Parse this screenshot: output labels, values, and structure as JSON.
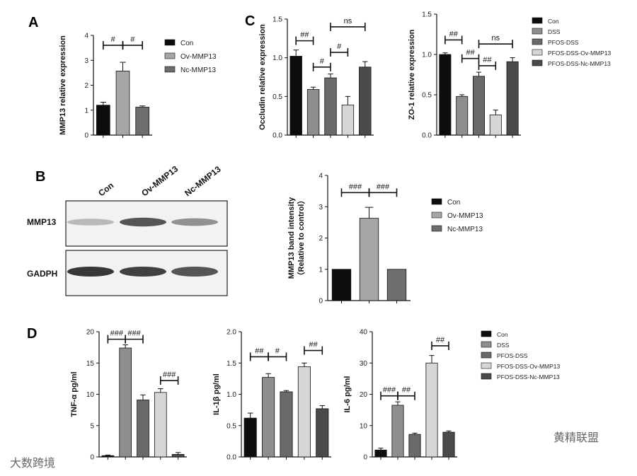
{
  "colors": {
    "Con": "#0d0d0d",
    "DSS": "#8e8e8e",
    "PFOS-DSS": "#6a6a6a",
    "PFOS-DSS-Ov-MMP13": "#d6d6d6",
    "PFOS-DSS-Nc-MMP13": "#4a4a4a",
    "Ov-MMP13": "#a6a6a6",
    "Nc-MMP13": "#6e6e6e"
  },
  "panels": {
    "A": "A",
    "B": "B",
    "C": "C",
    "D": "D"
  },
  "blot": {
    "lanes": [
      "Con",
      "Ov-MMP13",
      "Nc-MMP13"
    ],
    "bands": [
      "MMP13",
      "GADPH"
    ],
    "mmp13_intensity": [
      0.25,
      0.75,
      0.45
    ],
    "gadph_intensity": [
      0.9,
      0.85,
      0.75
    ]
  },
  "watermarks": {
    "left": "大数跨境",
    "right": "黄精联盟"
  },
  "chart_data": [
    {
      "id": "A",
      "type": "bar",
      "categories": [
        "Con",
        "Ov-MMP13",
        "Nc-MMP13"
      ],
      "values": [
        1.2,
        2.57,
        1.12
      ],
      "errors": [
        0.12,
        0.35,
        0.05
      ],
      "ylabel": "MMP13 relative expression",
      "ylim": [
        0,
        4
      ],
      "yticks": [
        0,
        1,
        2,
        3,
        4
      ],
      "legend": [
        "Con",
        "Ov-MMP13",
        "Nc-MMP13"
      ],
      "annotations": [
        {
          "from": 0,
          "to": 1,
          "y": 3.6,
          "text": "#"
        },
        {
          "from": 1,
          "to": 2,
          "y": 3.6,
          "text": "#"
        }
      ]
    },
    {
      "id": "C1",
      "type": "bar",
      "categories": [
        "Con",
        "DSS",
        "PFOS-DSS",
        "PFOS-DSS-Ov-MMP13",
        "PFOS-DSS-Nc-MMP13"
      ],
      "values": [
        1.02,
        0.59,
        0.74,
        0.39,
        0.88
      ],
      "errors": [
        0.08,
        0.03,
        0.05,
        0.11,
        0.07
      ],
      "ylabel": "Occludin relative expression",
      "ylim": [
        0,
        1.5
      ],
      "yticks": [
        0,
        0.5,
        1.0,
        1.5
      ],
      "annotations": [
        {
          "from": 0,
          "to": 1,
          "y": 1.22,
          "text": "##"
        },
        {
          "from": 1,
          "to": 2,
          "y": 0.88,
          "text": "#"
        },
        {
          "from": 2,
          "to": 3,
          "y": 1.07,
          "text": "#"
        },
        {
          "from": 2,
          "to": 4,
          "y": 1.4,
          "text": "ns"
        }
      ]
    },
    {
      "id": "C2",
      "type": "bar",
      "categories": [
        "Con",
        "DSS",
        "PFOS-DSS",
        "PFOS-DSS-Ov-MMP13",
        "PFOS-DSS-Nc-MMP13"
      ],
      "values": [
        1.0,
        0.48,
        0.73,
        0.25,
        0.91
      ],
      "errors": [
        0.02,
        0.02,
        0.05,
        0.06,
        0.05
      ],
      "ylabel": "ZO-1 relative expression",
      "ylim": [
        0,
        1.5
      ],
      "yticks": [
        0,
        0.5,
        1.0,
        1.5
      ],
      "legend": [
        "Con",
        "DSS",
        "PFOS-DSS",
        "PFOS-DSS-Ov-MMP13",
        "PFOS-DSS-Nc-MMP13"
      ],
      "annotations": [
        {
          "from": 0,
          "to": 1,
          "y": 1.18,
          "text": "##"
        },
        {
          "from": 1,
          "to": 2,
          "y": 0.95,
          "text": "##"
        },
        {
          "from": 2,
          "to": 3,
          "y": 0.86,
          "text": "##"
        },
        {
          "from": 2,
          "to": 4,
          "y": 1.13,
          "text": "ns"
        }
      ]
    },
    {
      "id": "B2",
      "type": "bar",
      "categories": [
        "Con",
        "Ov-MMP13",
        "Nc-MMP13"
      ],
      "values": [
        1.0,
        2.63,
        1.0
      ],
      "errors": [
        0.0,
        0.35,
        0.0
      ],
      "ylabel": "MMP13 band intensity（Relative to control）",
      "ylim": [
        0,
        4
      ],
      "yticks": [
        0,
        1,
        2,
        3,
        4
      ],
      "legend": [
        "Con",
        "Ov-MMP13",
        "Nc-MMP13"
      ],
      "annotations": [
        {
          "from": 0,
          "to": 1,
          "y": 3.45,
          "text": "###"
        },
        {
          "from": 1,
          "to": 2,
          "y": 3.45,
          "text": "###"
        }
      ]
    },
    {
      "id": "D1",
      "type": "bar",
      "categories": [
        "Con",
        "DSS",
        "PFOS-DSS",
        "PFOS-DSS-Ov-MMP13",
        "PFOS-DSS-Nc-MMP13"
      ],
      "values": [
        0.2,
        17.4,
        9.1,
        10.3,
        0.4
      ],
      "errors": [
        0.1,
        0.5,
        0.8,
        0.6,
        0.3
      ],
      "ylabel": "TNF-α pg/ml",
      "ylim": [
        0,
        20
      ],
      "yticks": [
        0,
        5,
        10,
        15,
        20
      ],
      "annotations": [
        {
          "from": 0,
          "to": 1,
          "y": 18.8,
          "text": "###"
        },
        {
          "from": 1,
          "to": 2,
          "y": 18.8,
          "text": "###"
        },
        {
          "from": 3,
          "to": 4,
          "y": 12.2,
          "text": "###"
        }
      ]
    },
    {
      "id": "D2",
      "type": "bar",
      "categories": [
        "Con",
        "DSS",
        "PFOS-DSS",
        "PFOS-DSS-Ov-MMP13",
        "PFOS-DSS-Nc-MMP13"
      ],
      "values": [
        0.62,
        1.27,
        1.04,
        1.44,
        0.77
      ],
      "errors": [
        0.08,
        0.06,
        0.02,
        0.06,
        0.05
      ],
      "ylabel": "IL-1β pg/ml",
      "ylim": [
        0,
        2.0
      ],
      "yticks": [
        0,
        0.5,
        1.0,
        1.5,
        2.0
      ],
      "annotations": [
        {
          "from": 0,
          "to": 1,
          "y": 1.6,
          "text": "##"
        },
        {
          "from": 1,
          "to": 2,
          "y": 1.6,
          "text": "#"
        },
        {
          "from": 3,
          "to": 4,
          "y": 1.7,
          "text": "##"
        }
      ]
    },
    {
      "id": "D3",
      "type": "bar",
      "categories": [
        "Con",
        "DSS",
        "PFOS-DSS",
        "PFOS-DSS-Ov-MMP13",
        "PFOS-DSS-Nc-MMP13"
      ],
      "values": [
        2.2,
        16.5,
        7.2,
        30.0,
        7.9
      ],
      "errors": [
        0.6,
        1.1,
        0.4,
        2.4,
        0.4
      ],
      "ylabel": "IL-6 pg/ml",
      "ylim": [
        0,
        40
      ],
      "yticks": [
        0,
        10,
        20,
        30,
        40
      ],
      "legend": [
        "Con",
        "DSS",
        "PFOS-DSS",
        "PFOS-DSS-Ov-MMP13",
        "PFOS-DSS-Nc-MMP13"
      ],
      "annotations": [
        {
          "from": 0,
          "to": 1,
          "y": 19.5,
          "text": "###"
        },
        {
          "from": 1,
          "to": 2,
          "y": 19.5,
          "text": "##"
        },
        {
          "from": 3,
          "to": 4,
          "y": 35.5,
          "text": "##"
        }
      ]
    }
  ]
}
